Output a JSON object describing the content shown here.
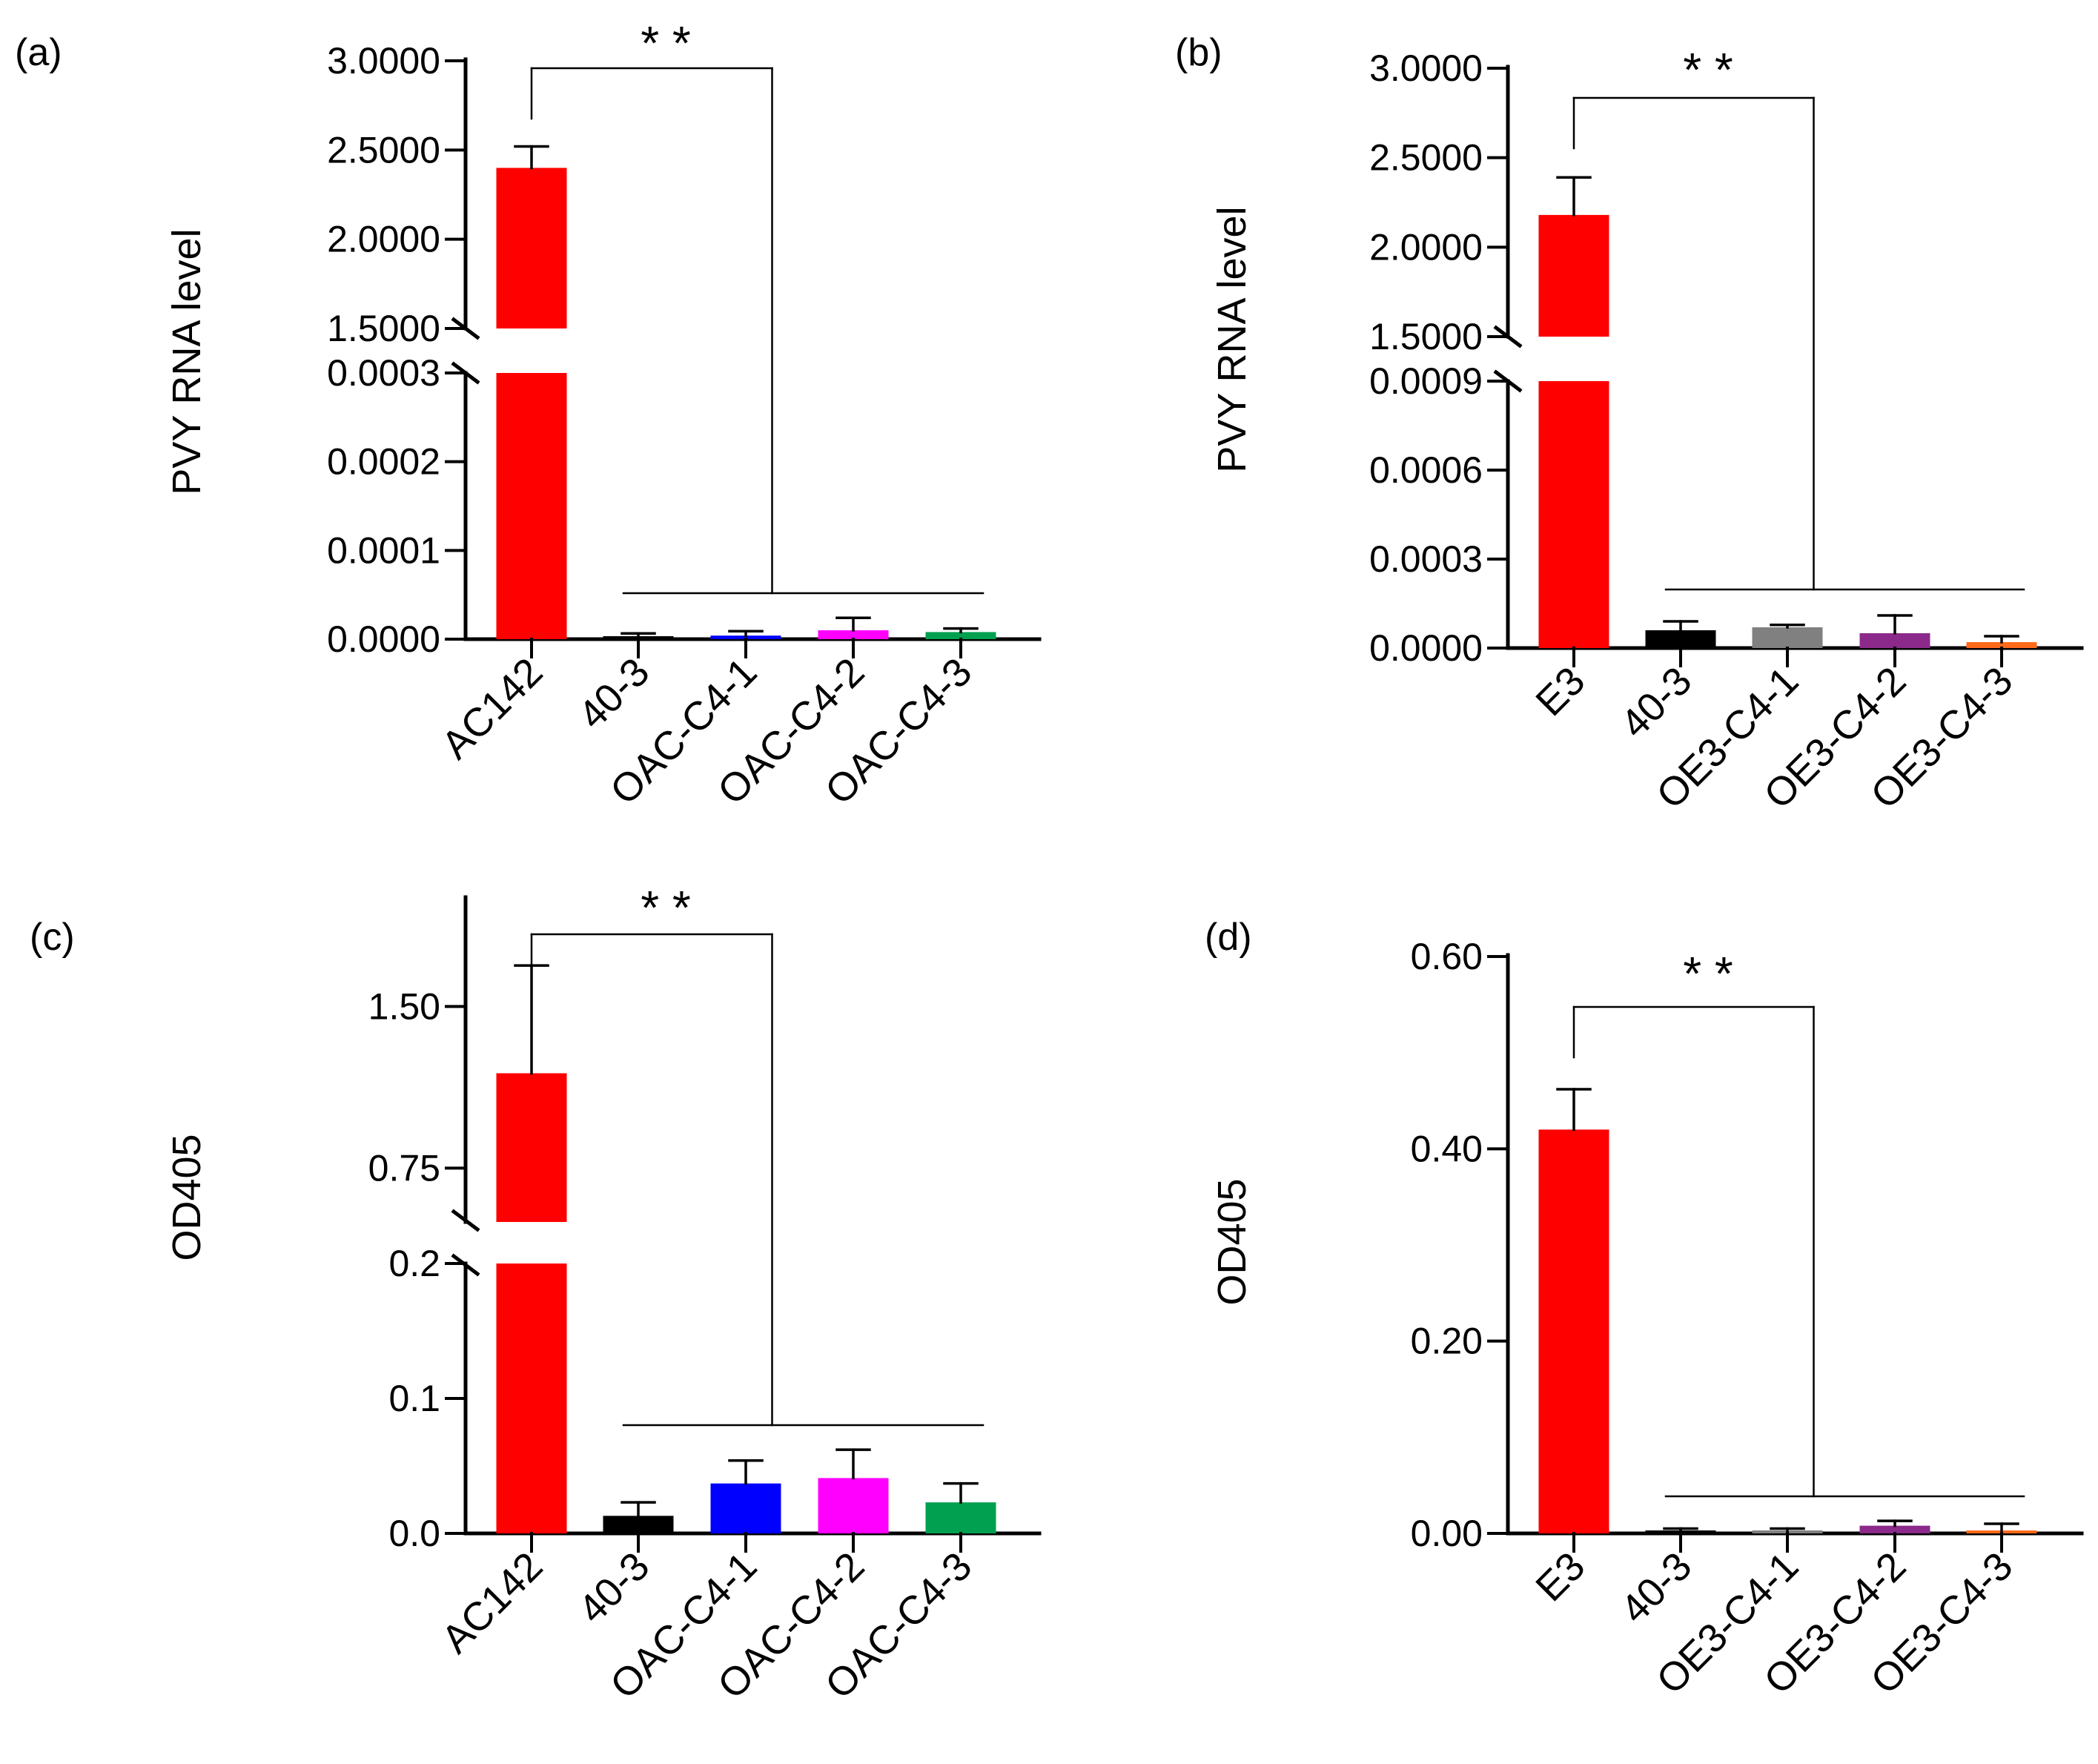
{
  "chart_data": [
    {
      "panel": "(a)",
      "type": "bar",
      "axis_break": true,
      "ylabel": "PVY RNA level",
      "categories": [
        "AC142",
        "40-3",
        "OAC-C4-1",
        "OAC-C4-2",
        "OAC-C4-3"
      ],
      "values": [
        2.4,
        2.5e-06,
        4e-06,
        1e-05,
        8e-06
      ],
      "errors": [
        0.12,
        4e-06,
        5e-06,
        1.4e-05,
        4e-06
      ],
      "colors": [
        "#ff0000",
        "#000000",
        "#0000ff",
        "#ff00ff",
        "#00a050"
      ],
      "lower_segment": {
        "ylim": [
          0,
          0.0003
        ],
        "ticks": [
          "0.0000",
          "0.0001",
          "0.0002",
          "0.0003"
        ]
      },
      "upper_segment": {
        "ylim": [
          1.5,
          3.0
        ],
        "ticks": [
          "1.5000",
          "2.0000",
          "2.5000",
          "3.0000"
        ]
      },
      "significance": "* *"
    },
    {
      "panel": "(b)",
      "type": "bar",
      "axis_break": true,
      "ylabel": "PVY RNA level",
      "categories": [
        "E3",
        "40-3",
        "OE3-C4-1",
        "OE3-C4-2",
        "OE3-C4-3"
      ],
      "values": [
        2.18,
        6e-05,
        7e-05,
        5e-05,
        2e-05
      ],
      "errors": [
        0.21,
        3e-05,
        8e-06,
        6e-05,
        2e-05
      ],
      "colors": [
        "#ff0000",
        "#000000",
        "#808080",
        "#8b2a8b",
        "#ff6a1a"
      ],
      "lower_segment": {
        "ylim": [
          0,
          0.0009
        ],
        "ticks": [
          "0.0000",
          "0.0003",
          "0.0006",
          "0.0009"
        ]
      },
      "upper_segment": {
        "ylim": [
          1.5,
          3.0
        ],
        "ticks": [
          "1.5000",
          "2.0000",
          "2.5000",
          "3.0000"
        ]
      },
      "significance": "* *"
    },
    {
      "panel": "(c)",
      "type": "bar",
      "axis_break": true,
      "ylabel": "OD405",
      "categories": [
        "AC142",
        "40-3",
        "OAC-C4-1",
        "OAC-C4-2",
        "OAC-C4-3"
      ],
      "values": [
        1.19,
        0.013,
        0.037,
        0.041,
        0.023
      ],
      "errors": [
        0.5,
        0.01,
        0.017,
        0.021,
        0.014
      ],
      "colors": [
        "#ff0000",
        "#000000",
        "#0000ff",
        "#ff00ff",
        "#00a050"
      ],
      "lower_segment": {
        "ylim": [
          0,
          0.2
        ],
        "ticks": [
          "0.0",
          "0.1",
          "0.2"
        ]
      },
      "upper_segment": {
        "ylim": [
          0.5,
          2.0
        ],
        "ticks": [
          "0.75",
          "1.50"
        ]
      },
      "significance": "* *"
    },
    {
      "panel": "(d)",
      "type": "bar",
      "axis_break": false,
      "ylabel": "OD405",
      "categories": [
        "E3",
        "40-3",
        "OE3-C4-1",
        "OE3-C4-2",
        "OE3-C4-3"
      ],
      "values": [
        0.42,
        0.003,
        0.002,
        0.008,
        0.003
      ],
      "errors": [
        0.042,
        0.002,
        0.003,
        0.005,
        0.007
      ],
      "colors": [
        "#ff0000",
        "#000000",
        "#808080",
        "#8b2a8b",
        "#ff6a1a"
      ],
      "lower_segment": {
        "ylim": [
          0,
          0.6
        ],
        "ticks": [
          "0.00",
          "0.20",
          "0.40",
          "0.60"
        ]
      },
      "significance": "* *"
    }
  ]
}
